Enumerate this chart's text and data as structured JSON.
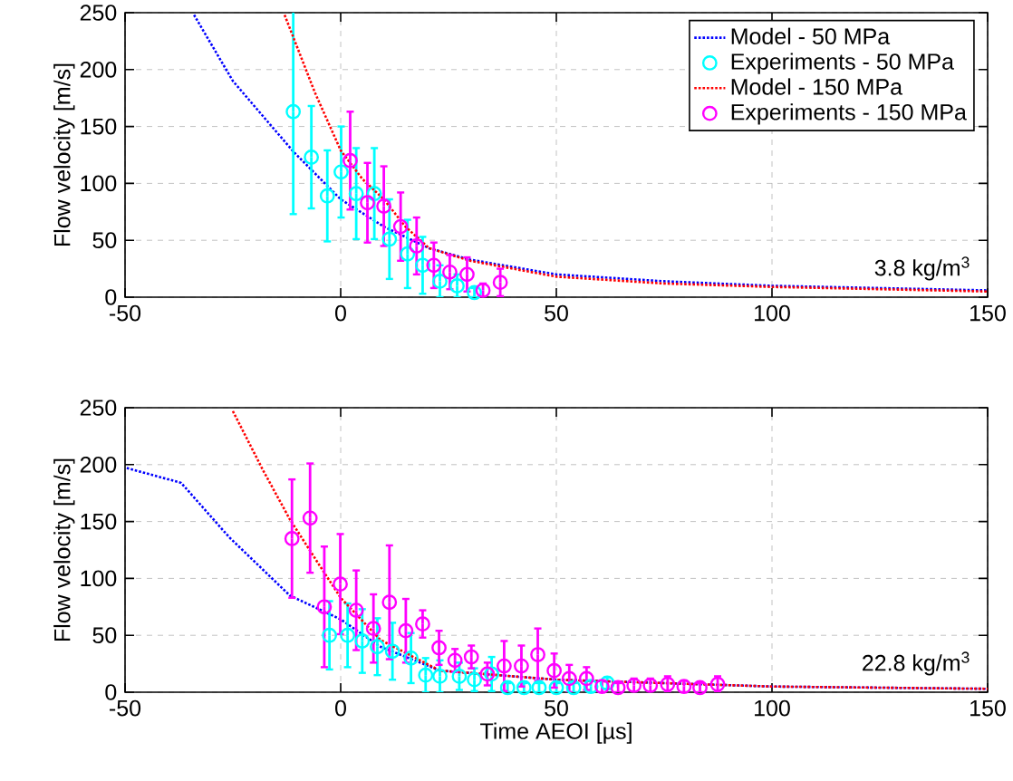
{
  "chart_data": [
    {
      "type": "line",
      "ylabel": "Flow velocity [m/s]",
      "xlim": [
        -50,
        150
      ],
      "ylim": [
        0,
        250
      ],
      "xticks": [
        -50,
        0,
        50,
        100,
        150
      ],
      "yticks": [
        0,
        50,
        100,
        150,
        200,
        250
      ],
      "grid": true,
      "legend": "top right",
      "annotations": [
        "3.8 kg/m$^{3}$"
      ],
      "series": [
        {
          "name": "Model - 50 MPa",
          "color": "#0000ff",
          "line_style": "dotted",
          "x": [
            -34,
            -25,
            -11,
            0,
            10,
            20.5,
            30,
            50,
            75,
            100,
            150
          ],
          "values": [
            248,
            190,
            128,
            86,
            62,
            43,
            33,
            20,
            14,
            10,
            6
          ]
        },
        {
          "name": "Experiments - 50 MPa",
          "type": "scatter",
          "color": "#00ffff",
          "marker": "circle",
          "x": [
            -11,
            -6.8,
            -3.1,
            0.1,
            3.6,
            7.8,
            11.3,
            15.5,
            19,
            23,
            27,
            31
          ],
          "values": [
            163,
            123,
            89,
            110,
            91,
            91,
            51,
            38,
            28,
            14,
            10,
            4
          ],
          "errors": [
            90,
            45,
            40,
            40,
            40,
            40,
            35,
            30,
            25,
            14,
            10,
            4
          ]
        },
        {
          "name": "Model - 150 MPa",
          "color": "#ff0000",
          "line_style": "dotted",
          "x": [
            -13,
            -6,
            0,
            5,
            10,
            15,
            20.5,
            30,
            50,
            75,
            100,
            150
          ],
          "values": [
            248,
            180,
            129,
            104,
            86,
            62,
            43,
            32,
            18,
            12,
            9,
            5
          ]
        },
        {
          "name": "Experiments - 150 MPa",
          "type": "scatter",
          "color": "#ff00ff",
          "marker": "circle",
          "x": [
            2.2,
            6.2,
            10,
            13.9,
            17.6,
            21.6,
            25.3,
            29.3,
            33,
            37
          ],
          "values": [
            120,
            83,
            80,
            62,
            45,
            28,
            22,
            20,
            6,
            13
          ],
          "errors": [
            43,
            35,
            35,
            30,
            25,
            20,
            15,
            15,
            6,
            12
          ]
        }
      ]
    },
    {
      "type": "line",
      "xlabel": "Time AEOI [µs]",
      "ylabel": "Flow velocity [m/s]",
      "xlim": [
        -50,
        150
      ],
      "ylim": [
        0,
        250
      ],
      "xticks": [
        -50,
        0,
        50,
        100,
        150
      ],
      "yticks": [
        0,
        50,
        100,
        150,
        200,
        250
      ],
      "grid": true,
      "annotations": [
        "22.8 kg/m$^{3}$"
      ],
      "series": [
        {
          "color": "#0000ff",
          "line_style": "dotted",
          "x": [
            -49.6,
            -37,
            -25.8,
            -11.8,
            0,
            9.2,
            23,
            50,
            100,
            150
          ],
          "values": [
            197,
            184,
            136,
            85,
            64,
            40,
            19,
            11,
            5,
            3
          ]
        },
        {
          "type": "scatter",
          "color": "#00ffff",
          "marker": "circle",
          "x": [
            -2.6,
            1.6,
            5,
            8.5,
            12,
            16.3,
            19.7,
            23,
            27.5,
            31,
            35,
            38.7,
            42.5,
            46,
            50,
            54,
            58,
            61.8
          ],
          "values": [
            50,
            50,
            45,
            40,
            36,
            30,
            15,
            14,
            14,
            11,
            16,
            4,
            4,
            4,
            4,
            4,
            5,
            8
          ],
          "errors": [
            30,
            28,
            28,
            25,
            25,
            22,
            15,
            14,
            12,
            10,
            15,
            4,
            4,
            4,
            4,
            4,
            5,
            5
          ]
        },
        {
          "color": "#ff0000",
          "line_style": "dotted",
          "x": [
            -25,
            -18,
            -11.8,
            -5,
            0,
            9.2,
            23,
            50,
            100,
            150
          ],
          "values": [
            247,
            195,
            152,
            112,
            83,
            46,
            19,
            11,
            5,
            3
          ]
        },
        {
          "type": "scatter",
          "color": "#ff00ff",
          "marker": "circle",
          "x": [
            -11.3,
            -7.1,
            -3.8,
            -0.1,
            3.6,
            7.6,
            11.3,
            15.1,
            19,
            22.8,
            26.5,
            30.3,
            34,
            37.9,
            41.9,
            45.7,
            49.5,
            53,
            57,
            60.6,
            64.3,
            68,
            71.8,
            75.8,
            79.6,
            83.3,
            87.4
          ],
          "values": [
            135,
            153,
            75,
            95,
            72,
            56,
            79,
            54,
            60,
            39,
            28,
            31,
            16,
            23,
            23,
            33,
            19,
            12,
            12,
            5,
            4,
            6,
            6,
            7,
            5,
            4,
            7
          ],
          "errors": [
            52,
            48,
            53,
            44,
            35,
            30,
            50,
            28,
            12,
            15,
            10,
            10,
            10,
            22,
            18,
            23,
            15,
            12,
            10,
            5,
            4,
            6,
            6,
            7,
            5,
            4,
            7
          ]
        }
      ]
    }
  ]
}
